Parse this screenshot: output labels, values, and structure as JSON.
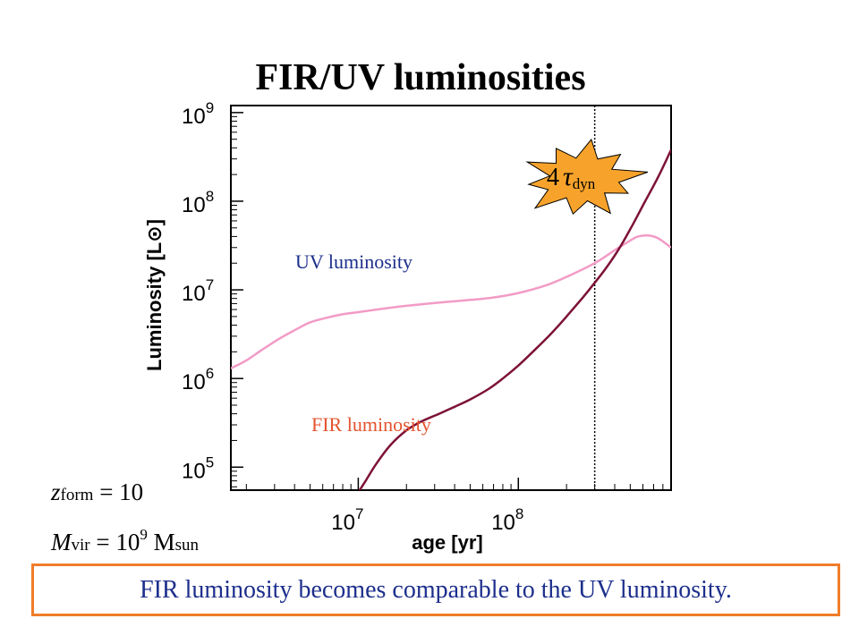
{
  "slide": {
    "title": "FIR/UV luminosities",
    "conclusion": "FIR luminosity becomes comparable to the UV luminosity."
  },
  "params": {
    "z_symbol": "z",
    "z_sub": "form",
    "z_value": "= 10",
    "m_symbol": "M",
    "m_sub": "vir",
    "m_eq": "= 10",
    "m_exp": "9",
    "m_unit": "M",
    "m_unit_sub": "sun"
  },
  "colors": {
    "uv_curve": "#f29bc6",
    "fir_curve": "#7d1236",
    "uv_label": "#1d2f8c",
    "fir_label": "#e4532e",
    "burst_fill": "#f7a32b",
    "box_border": "#f07d2a",
    "conclusion_text": "#1d2f8c"
  },
  "chart_data": {
    "type": "line",
    "title": "",
    "xlabel": "age [yr]",
    "ylabel": "Luminosity [L⊙]",
    "xscale": "log",
    "yscale": "log",
    "xlim": [
      1600000.0,
      900000000.0
    ],
    "ylim": [
      55000.0,
      1200000000.0
    ],
    "x_ticks": [
      {
        "base": "10",
        "exp": "7",
        "value": 10000000.0
      },
      {
        "base": "10",
        "exp": "8",
        "value": 100000000.0
      }
    ],
    "y_ticks": [
      {
        "base": "10",
        "exp": "5",
        "value": 100000.0
      },
      {
        "base": "10",
        "exp": "6",
        "value": 1000000.0
      },
      {
        "base": "10",
        "exp": "7",
        "value": 10000000.0
      },
      {
        "base": "10",
        "exp": "8",
        "value": 100000000.0
      },
      {
        "base": "10",
        "exp": "9",
        "value": 1000000000.0
      }
    ],
    "grid": false,
    "legend": "none",
    "series": [
      {
        "name": "UV luminosity",
        "x": [
          1600000.0,
          2000000.0,
          2500000.0,
          3200000.0,
          4000000.0,
          5000000.0,
          6500000.0,
          8000000.0,
          10000000.0,
          15000000.0,
          20000000.0,
          30000000.0,
          50000000.0,
          70000000.0,
          100000000.0,
          150000000.0,
          200000000.0,
          300000000.0,
          400000000.0,
          500000000.0,
          560000000.0,
          650000000.0,
          750000000.0,
          900000000.0
        ],
        "y": [
          1300000.0,
          1600000.0,
          2100000.0,
          2800000.0,
          3500000.0,
          4300000.0,
          4900000.0,
          5300000.0,
          5600000.0,
          6200000.0,
          6600000.0,
          7100000.0,
          7700000.0,
          8200000.0,
          9200000.0,
          11300000.0,
          14000000.0,
          20000000.0,
          28000000.0,
          36000000.0,
          40000000.0,
          41000000.0,
          38000000.0,
          30000000.0
        ]
      },
      {
        "name": "FIR luminosity",
        "x": [
          9500000.0,
          11000000.0,
          13000000.0,
          16000000.0,
          20000000.0,
          25000000.0,
          32000000.0,
          40000000.0,
          50000000.0,
          65000000.0,
          80000000.0,
          100000000.0,
          130000000.0,
          160000000.0,
          200000000.0,
          250000000.0,
          300000000.0,
          360000000.0,
          430000000.0,
          520000000.0,
          620000000.0,
          750000000.0,
          900000000.0
        ],
        "y": [
          45000.0,
          68000.0,
          110000.0,
          180000.0,
          260000.0,
          330000.0,
          400000.0,
          480000.0,
          580000.0,
          760000.0,
          1000000.0,
          1400000.0,
          2200000.0,
          3200000.0,
          5000000.0,
          8000000.0,
          12000000.0,
          18500000.0,
          30000000.0,
          55000000.0,
          100000000.0,
          190000000.0,
          380000000.0
        ]
      }
    ],
    "annotations": [
      {
        "kind": "vertical-line",
        "x": 300000000.0,
        "style": "dotted"
      },
      {
        "kind": "burst",
        "x": 300000000.0,
        "label_pre": "4",
        "label_symbol": "τ",
        "label_sub": "dyn"
      }
    ]
  }
}
